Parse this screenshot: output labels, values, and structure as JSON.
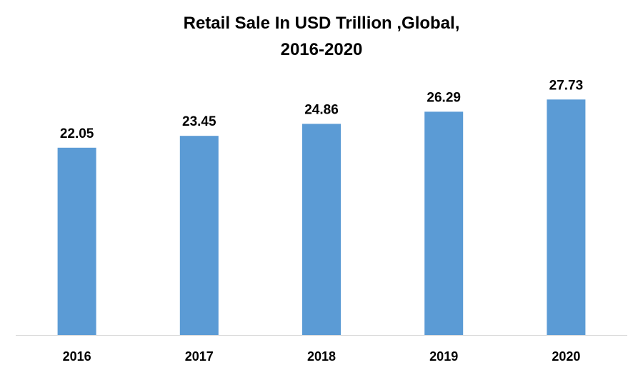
{
  "chart_data": {
    "type": "bar",
    "title": "Retail Sale In USD Trillion ,Global,",
    "subtitle": "2016-2020",
    "categories": [
      "2016",
      "2017",
      "2018",
      "2019",
      "2020"
    ],
    "values": [
      22.05,
      23.45,
      24.86,
      26.29,
      27.73
    ],
    "data_labels": [
      "22.05",
      "23.45",
      "24.86",
      "26.29",
      "27.73"
    ],
    "xlabel": "",
    "ylabel": "",
    "ylim": [
      0,
      30
    ],
    "y_axis_visible": false,
    "grid": false,
    "legend": "none",
    "colors": {
      "bar": "#5B9BD5",
      "axis": "#D9D9D9",
      "text": "#000000"
    }
  }
}
